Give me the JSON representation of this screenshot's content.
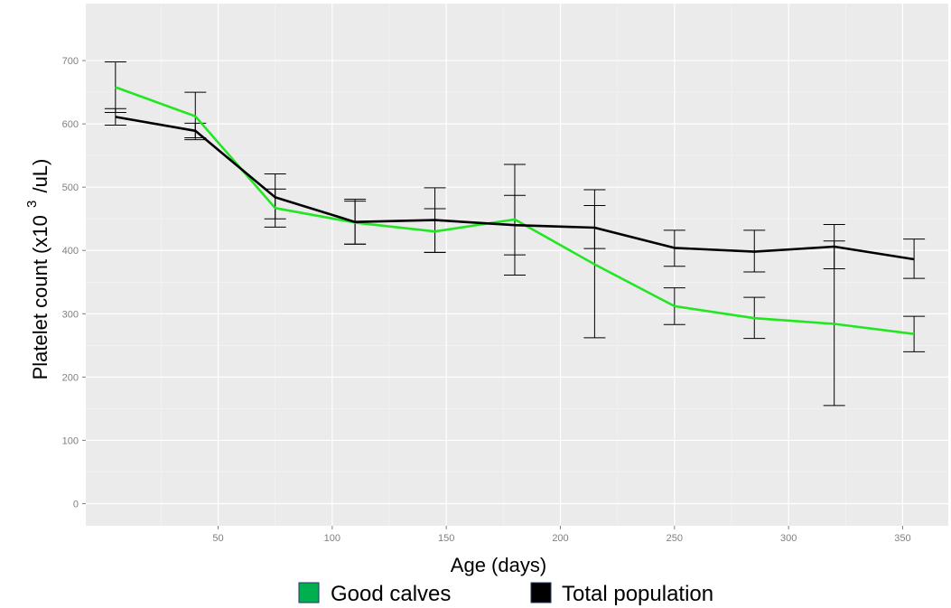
{
  "chart_data": {
    "type": "line",
    "xlabel": "Age (days)",
    "ylabel": {
      "main": "Platelet count (x10",
      "sup": "3",
      "suffix": "/uL)"
    },
    "xlim": [
      -8,
      370
    ],
    "ylim": [
      -35,
      790
    ],
    "x_ticks": [
      50,
      100,
      150,
      200,
      250,
      300,
      350
    ],
    "y_ticks": [
      0,
      100,
      200,
      300,
      400,
      500,
      600,
      700
    ],
    "grid": true,
    "legend_position": "bottom",
    "series": [
      {
        "name": "Good calves",
        "color": "#22e622",
        "x": [
          5,
          40,
          75,
          110,
          145,
          180,
          215,
          250,
          285,
          320,
          355
        ],
        "y": [
          658,
          612,
          467,
          444,
          430,
          449,
          378,
          312,
          293,
          284,
          268
        ],
        "err_low": [
          618,
          575,
          437,
          410,
          397,
          393,
          262,
          283,
          261,
          155,
          240
        ],
        "err_high": [
          698,
          650,
          497,
          478,
          466,
          487,
          496,
          341,
          326,
          415,
          296
        ]
      },
      {
        "name": "Total population",
        "color": "#000000",
        "x": [
          5,
          40,
          75,
          110,
          145,
          180,
          215,
          250,
          285,
          320,
          355
        ],
        "y": [
          611,
          589,
          484,
          445,
          448,
          440,
          436,
          404,
          398,
          406,
          386
        ],
        "err_low": [
          598,
          578,
          450,
          410,
          397,
          361,
          403,
          375,
          366,
          371,
          356
        ],
        "err_high": [
          624,
          601,
          521,
          481,
          499,
          536,
          471,
          432,
          432,
          441,
          418
        ]
      }
    ],
    "legend": [
      {
        "label": "Good calves",
        "swatch_color": "#00b050"
      },
      {
        "label": "Total population",
        "swatch_color": "#000000"
      }
    ]
  }
}
